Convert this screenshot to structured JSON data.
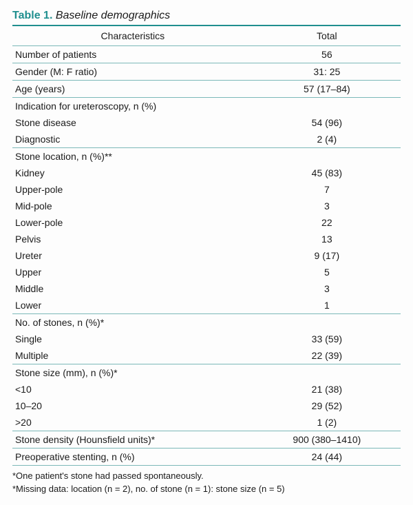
{
  "title": {
    "label": "Table 1.",
    "caption": "Baseline demographics"
  },
  "colors": {
    "accent": "#1f8f8f",
    "rule": "#7bb8b8",
    "row_rule": "#7bb8b8"
  },
  "headers": {
    "char": "Characteristics",
    "total": "Total"
  },
  "rows": [
    {
      "type": "simple",
      "label": "Number of patients",
      "value": "56"
    },
    {
      "type": "simple",
      "label": "Gender (M: F ratio)",
      "value": "31: 25"
    },
    {
      "type": "simple",
      "label": "Age (years)",
      "value": "57 (17–84)"
    },
    {
      "type": "group",
      "label": "Indication for ureteroscopy, n (%)",
      "items": [
        {
          "label": "Stone disease",
          "value": "54 (96)",
          "indent": 1
        },
        {
          "label": "Diagnostic",
          "value": "2 (4)",
          "indent": 1
        }
      ]
    },
    {
      "type": "group",
      "label": "Stone location, n (%)**",
      "items": [
        {
          "label": "Kidney",
          "value": "45 (83)",
          "indent": 1
        },
        {
          "label": "Upper-pole",
          "value": "7",
          "indent": 2
        },
        {
          "label": "Mid-pole",
          "value": "3",
          "indent": 2
        },
        {
          "label": "Lower-pole",
          "value": "22",
          "indent": 2
        },
        {
          "label": "Pelvis",
          "value": "13",
          "indent": 2
        },
        {
          "label": "Ureter",
          "value": "9 (17)",
          "indent": 1
        },
        {
          "label": "Upper",
          "value": "5",
          "indent": 2
        },
        {
          "label": "Middle",
          "value": "3",
          "indent": 2
        },
        {
          "label": "Lower",
          "value": "1",
          "indent": 2
        }
      ]
    },
    {
      "type": "group",
      "label": "No. of stones, n (%)*",
      "items": [
        {
          "label": "Single",
          "value": "33 (59)",
          "indent": 1
        },
        {
          "label": "Multiple",
          "value": "22 (39)",
          "indent": 1
        }
      ]
    },
    {
      "type": "group",
      "label": "Stone size (mm), n (%)*",
      "items": [
        {
          "label": "<10",
          "value": "21 (38)",
          "indent": 1
        },
        {
          "label": "10–20",
          "value": "29 (52)",
          "indent": 1
        },
        {
          "label": ">20",
          "value": "1 (2)",
          "indent": 1
        }
      ]
    },
    {
      "type": "simple",
      "label": "Stone density (Hounsfield units)*",
      "value": "900 (380–1410)"
    },
    {
      "type": "simple",
      "label": "Preoperative stenting, n (%)",
      "value": "24 (44)"
    }
  ],
  "footnotes": [
    "*One patient's stone had passed spontaneously.",
    "*Missing data: location (n = 2), no. of stone (n = 1): stone size (n = 5)"
  ]
}
